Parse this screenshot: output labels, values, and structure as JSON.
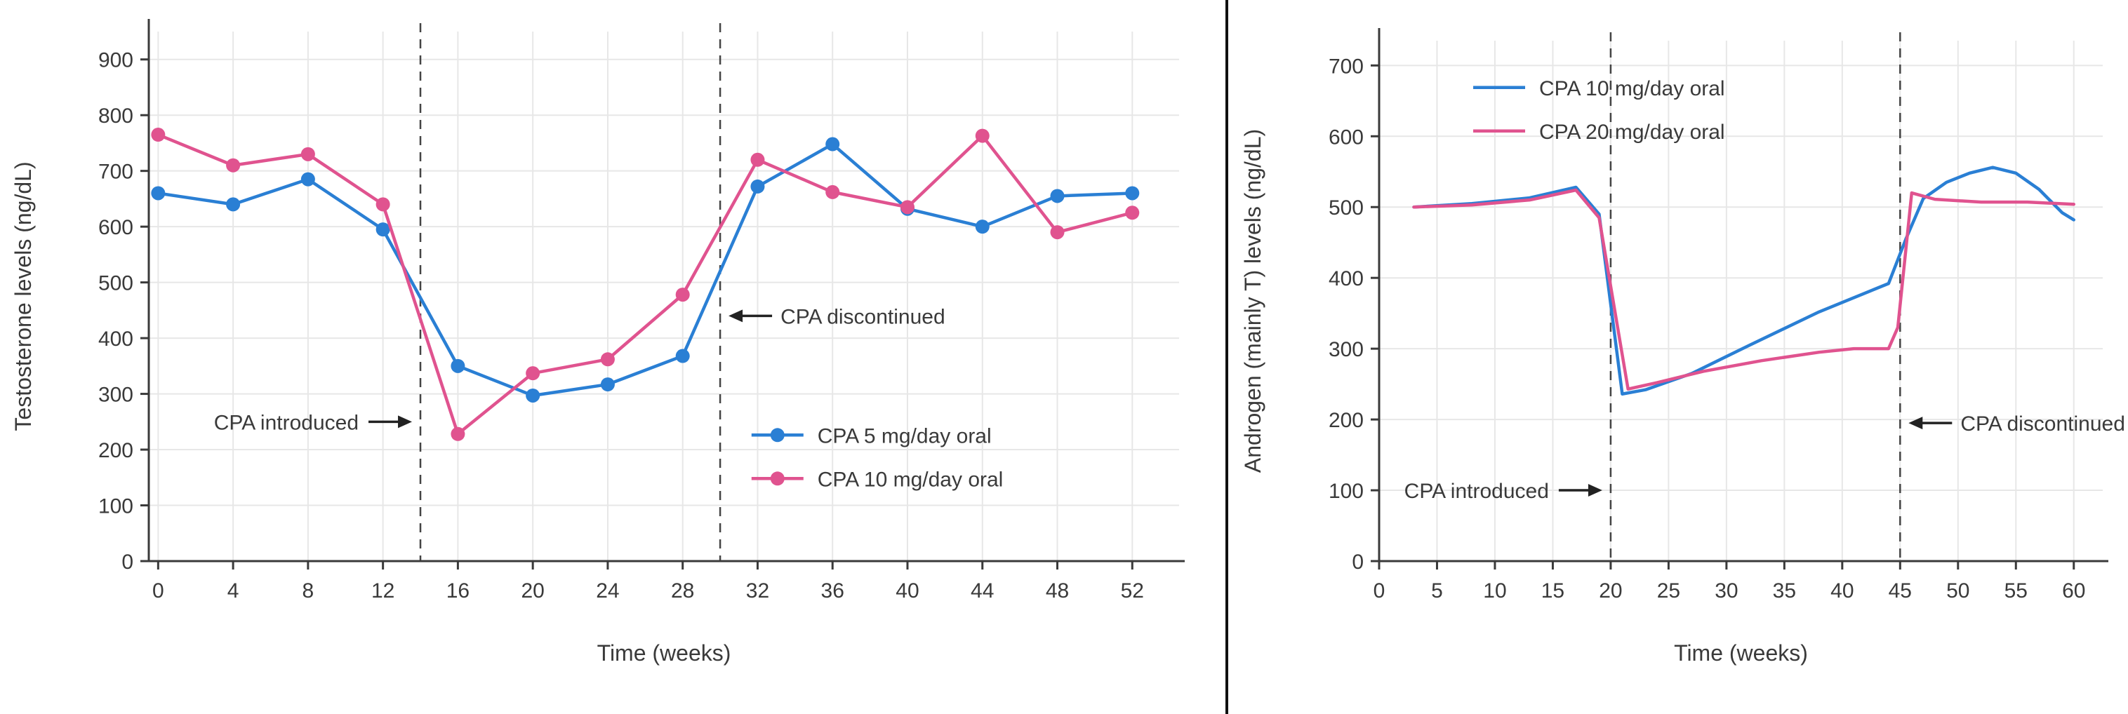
{
  "theme": {
    "background": "#ffffff",
    "grid_color": "#e7e7e7",
    "axis_color": "#3a3a3a",
    "text_color": "#3a3a3a",
    "annotation_color": "#222222",
    "vline_color": "#444444",
    "divider_color": "#111111",
    "series_blue": "#2a7fd4",
    "series_pink": "#e0538f"
  },
  "chart_data": [
    {
      "type": "line",
      "title": "",
      "xlabel": "Time (weeks)",
      "ylabel": "Testosterone levels (ng/dL)",
      "xlim": [
        -0.5,
        54.5
      ],
      "ylim": [
        0,
        950
      ],
      "xticks": [
        0,
        4,
        8,
        12,
        16,
        20,
        24,
        28,
        32,
        36,
        40,
        44,
        48,
        52
      ],
      "yticks": [
        0,
        100,
        200,
        300,
        400,
        500,
        600,
        700,
        800,
        900
      ],
      "grid": true,
      "series": [
        {
          "name": "CPA 5 mg/day oral",
          "color": "#2a7fd4",
          "marker": true,
          "x": [
            0,
            4,
            8,
            12,
            16,
            20,
            24,
            28,
            32,
            36,
            40,
            44,
            48,
            52
          ],
          "values": [
            660,
            640,
            685,
            595,
            350,
            297,
            317,
            368,
            672,
            748,
            632,
            600,
            655,
            660
          ]
        },
        {
          "name": "CPA 10 mg/day oral",
          "color": "#e0538f",
          "marker": true,
          "x": [
            0,
            4,
            8,
            12,
            16,
            20,
            24,
            28,
            32,
            36,
            40,
            44,
            48,
            52
          ],
          "values": [
            765,
            710,
            730,
            640,
            228,
            337,
            362,
            478,
            720,
            662,
            635,
            763,
            590,
            625
          ]
        }
      ],
      "vlines": [
        {
          "x": 14
        },
        {
          "x": 30
        }
      ],
      "annotations": [
        {
          "text": "CPA introduced",
          "x": 14,
          "y": 250,
          "arrow": "right"
        },
        {
          "text": "CPA discontinued",
          "x": 30,
          "y": 440,
          "arrow": "left"
        }
      ],
      "legend": {
        "position": "inside right",
        "fx": 0.585,
        "fy": 0.762,
        "marker": true
      }
    },
    {
      "type": "line",
      "title": "",
      "xlabel": "Time (weeks)",
      "ylabel": "Androgen (mainly T) levels (ng/dL)",
      "xlim": [
        0,
        62.5
      ],
      "ylim": [
        0,
        735
      ],
      "xticks": [
        0,
        5,
        10,
        15,
        20,
        25,
        30,
        35,
        40,
        45,
        50,
        55,
        60
      ],
      "yticks": [
        0,
        100,
        200,
        300,
        400,
        500,
        600,
        700
      ],
      "grid": true,
      "series": [
        {
          "name": "CPA 10 mg/day oral",
          "color": "#2a7fd4",
          "marker": false,
          "x": [
            3,
            8,
            13,
            17,
            19,
            21,
            23,
            27,
            32,
            38,
            44,
            45.5,
            47,
            49,
            51,
            53,
            55,
            57,
            59,
            60
          ],
          "values": [
            500,
            505,
            513,
            528,
            490,
            236,
            242,
            265,
            305,
            352,
            392,
            455,
            512,
            535,
            548,
            556,
            548,
            525,
            492,
            482
          ]
        },
        {
          "name": "CPA 20 mg/day oral",
          "color": "#e0538f",
          "marker": false,
          "x": [
            3,
            8,
            13,
            17,
            19,
            21.5,
            24,
            28,
            33,
            38,
            41,
            44,
            44.8,
            46,
            48,
            52,
            56,
            60
          ],
          "values": [
            500,
            503,
            510,
            524,
            485,
            243,
            252,
            268,
            283,
            295,
            300,
            300,
            330,
            520,
            511,
            507,
            507,
            504
          ]
        }
      ],
      "vlines": [
        {
          "x": 20
        },
        {
          "x": 45
        }
      ],
      "annotations": [
        {
          "text": "CPA introduced",
          "x": 20,
          "y": 100,
          "arrow": "right"
        },
        {
          "text": "CPA discontinued",
          "x": 45,
          "y": 195,
          "arrow": "left"
        }
      ],
      "legend": {
        "position": "inside top-left",
        "fx": 0.13,
        "fy": 0.09,
        "marker": false
      }
    }
  ]
}
